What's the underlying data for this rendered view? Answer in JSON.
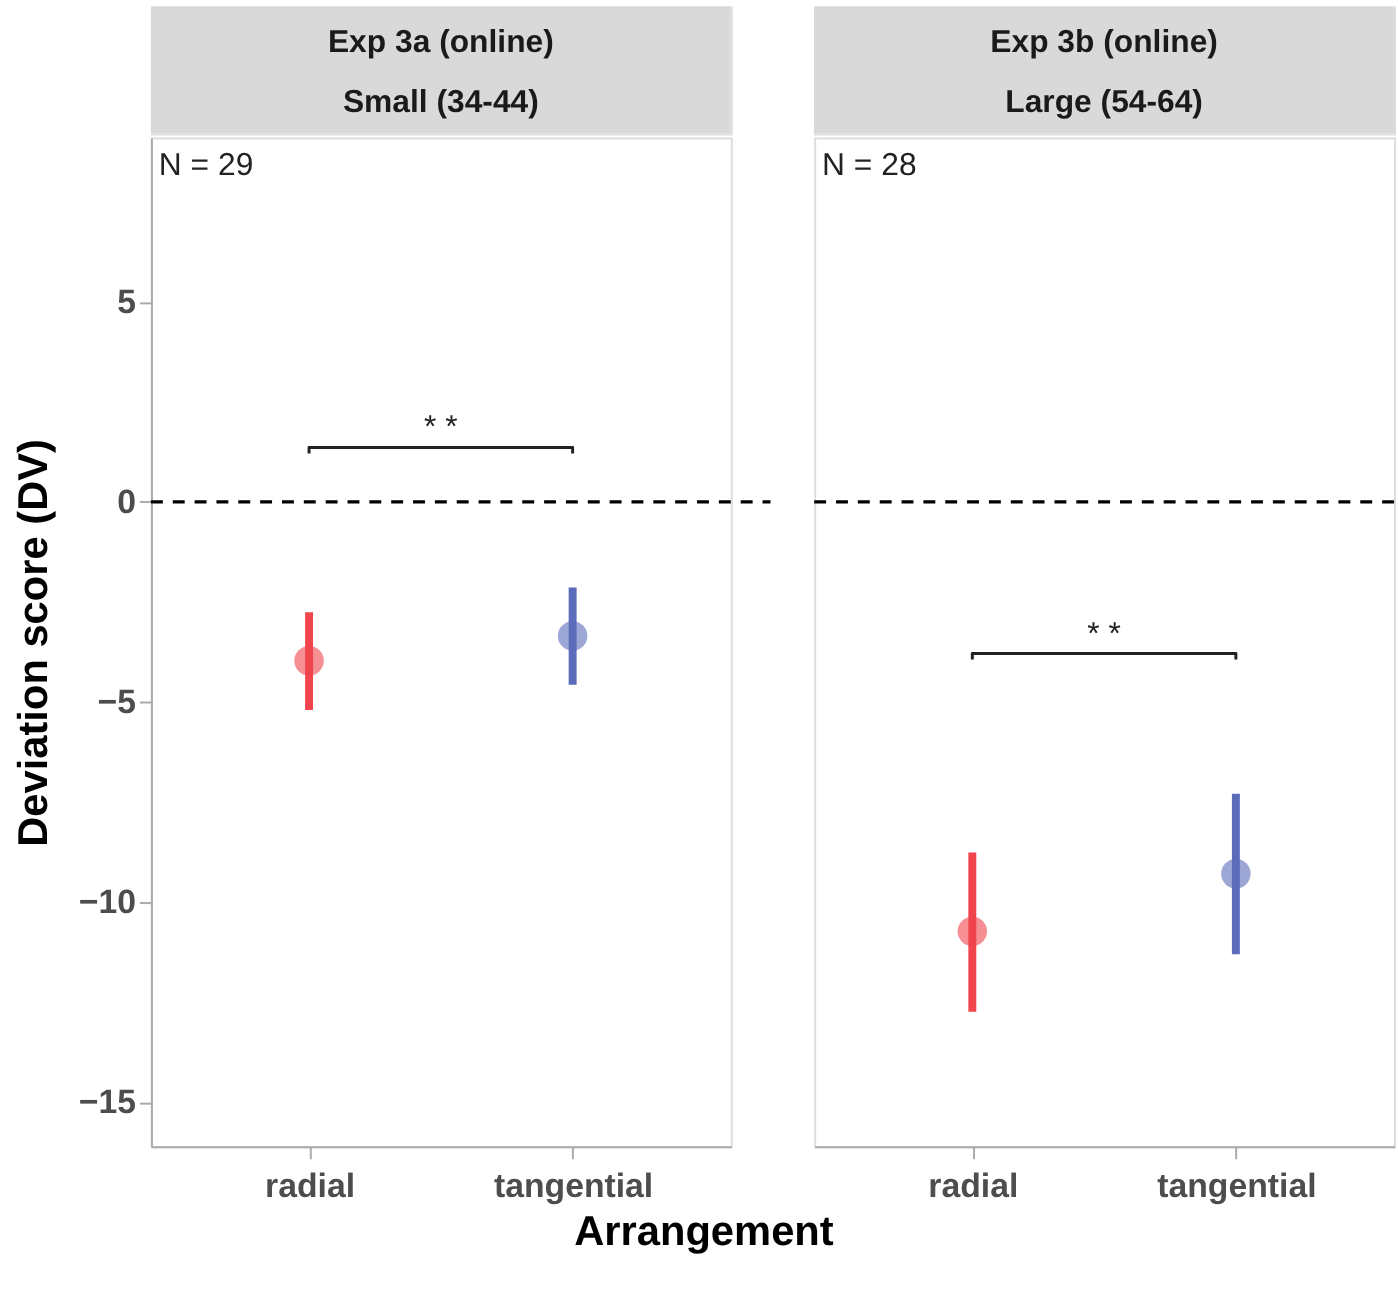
{
  "chart_data": [
    {
      "type": "scatter",
      "title": "Exp 3a (online)",
      "subtitle": "Small (34-44)",
      "ylabel": "Deviation score (DV)",
      "xlabel": "Arrangement",
      "categories": [
        "radial",
        "tangential"
      ],
      "values": [
        -3.97,
        -3.35
      ],
      "colors": [
        "#f0454d",
        "#5b6cbb"
      ],
      "errors": [
        [
          -5.2,
          -2.76
        ],
        [
          -4.57,
          -2.14
        ]
      ],
      "ylim": [
        -16.1,
        9.1
      ],
      "yticks": [
        -15,
        -10,
        -5,
        0,
        5
      ],
      "marker": "circle",
      "grid": false,
      "ref_lines": [
        {
          "axis": "y",
          "value": 0,
          "line_style": "dashed",
          "color": "#000000"
        }
      ],
      "annotations": [
        "N = 29",
        "* *"
      ]
    },
    {
      "type": "scatter",
      "title": "Exp 3b (online)",
      "subtitle": "Large (54-64)",
      "categories": [
        "radial",
        "tangential"
      ],
      "values": [
        -10.73,
        -9.29
      ],
      "colors": [
        "#f0454d",
        "#5b6cbb"
      ],
      "errors": [
        [
          -12.74,
          -8.76
        ],
        [
          -11.3,
          -7.29
        ]
      ],
      "ylim": [
        -16.1,
        9.1
      ],
      "yticks": [
        -15,
        -10,
        -5,
        0,
        5
      ],
      "tick_labels": "x",
      "marker": "circle",
      "grid": false,
      "ref_lines": [
        {
          "axis": "y",
          "value": 0,
          "line_style": "dashed",
          "color": "#000000"
        }
      ],
      "annotations": [
        "N = 28",
        "* *"
      ]
    }
  ]
}
